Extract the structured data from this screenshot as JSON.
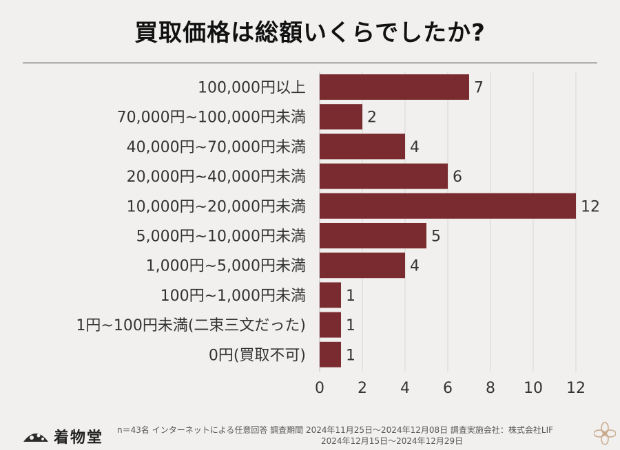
{
  "title": "買取価格は総額いくらでしたか?",
  "chart_data": {
    "type": "bar",
    "orientation": "horizontal",
    "categories": [
      "100,000円以上",
      "70,000円~100,000円未満",
      "40,000円~70,000円未満",
      "20,000円~40,000円未満",
      "10,000円~20,000円未満",
      "5,000円~10,000円未満",
      "1,000円~5,000円未満",
      "100円~1,000円未満",
      "1円~100円未満(二束三文だった)",
      "0円(買取不可)"
    ],
    "values": [
      7,
      2,
      4,
      6,
      12,
      5,
      4,
      1,
      1,
      1
    ],
    "xlim": [
      0,
      12
    ],
    "xticks": [
      0,
      2,
      4,
      6,
      8,
      10,
      12
    ],
    "grid": true,
    "bar_color": "#7a2b30"
  },
  "footer": {
    "logo": "着物堂",
    "note_line1": "n＝43名 インターネットによる任意回答 調査期間 2024年11月25日～2024年12月08日 調査実施会社：株式会社LIF",
    "note_line2": "2024年12月15日～2024年12月29日"
  }
}
